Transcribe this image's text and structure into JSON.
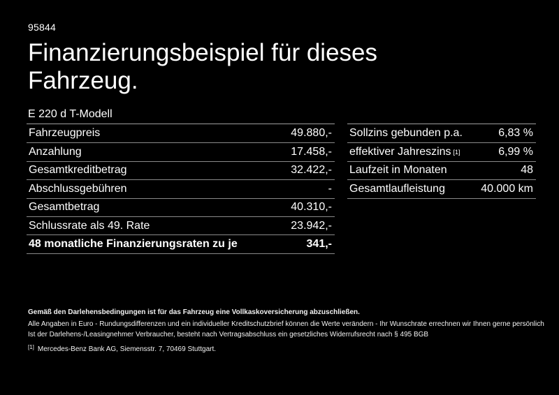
{
  "header": {
    "ref_number": "95844",
    "title_line1": "Finanzierungsbeispiel für dieses",
    "title_line2": "Fahrzeug.",
    "model": "E 220 d T-Modell"
  },
  "finance_table": {
    "rows": [
      {
        "label": "Fahrzeugpreis",
        "sup": "",
        "value": "49.880,-",
        "bold": false
      },
      {
        "label": "Anzahlung",
        "sup": "",
        "value": "17.458,-",
        "bold": false
      },
      {
        "label": "Gesamtkreditbetrag",
        "sup": "",
        "value": "32.422,-",
        "bold": false
      },
      {
        "label": "Abschlussgebühren",
        "sup": "",
        "value": "-",
        "bold": false
      },
      {
        "label": "Gesamtbetrag",
        "sup": "",
        "value": "40.310,-",
        "bold": false
      },
      {
        "label": "Schlussrate als 49. Rate",
        "sup": "",
        "value": "23.942,-",
        "bold": false
      },
      {
        "label": "48 monatliche Finanzierungsraten zu je",
        "sup": "",
        "value": "341,-",
        "bold": true
      }
    ]
  },
  "conditions_table": {
    "rows": [
      {
        "label": "Sollzins gebunden p.a.",
        "sup": "",
        "value": "6,83 %",
        "bold": false
      },
      {
        "label": "effektiver Jahreszins",
        "sup": "[1]",
        "value": "6,99 %",
        "bold": false
      },
      {
        "label": "Laufzeit in Monaten",
        "sup": "",
        "value": "48",
        "bold": false
      },
      {
        "label": "Gesamtlaufleistung",
        "sup": "",
        "value": "40.000 km",
        "bold": false
      }
    ]
  },
  "footer": {
    "bold_note": "Gemäß den Darlehensbedingungen ist für das Fahrzeug eine Vollkaskoversicherung abzuschließen.",
    "note_line1": "Alle Angaben in Euro - Rundungsdifferenzen und ein individueller Kreditschutzbrief können die Werte verändern - Ihr Wunschrate errechnen wir Ihnen gerne persönlich",
    "note_line2": "Ist der Darlehens-/Leasingnehmer Verbraucher, besteht nach Vertragsabschluss ein gesetzliches Widerrufsrecht nach § 495 BGB",
    "footnote_marker": "[1]",
    "footnote_text": "Mercedes-Benz Bank AG, Siemensstr. 7, 70469 Stuttgart."
  },
  "colors": {
    "background": "#000000",
    "text": "#ffffff",
    "line": "#8a8a8a",
    "line_top": "#9e9e9e"
  }
}
